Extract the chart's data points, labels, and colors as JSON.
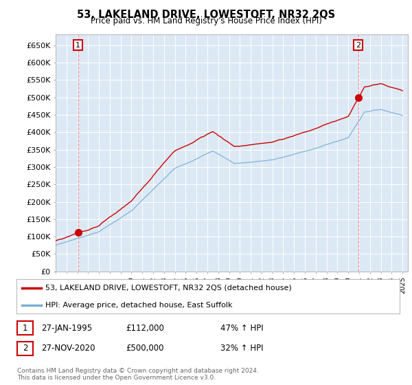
{
  "title": "53, LAKELAND DRIVE, LOWESTOFT, NR32 2QS",
  "subtitle": "Price paid vs. HM Land Registry's House Price Index (HPI)",
  "ylabel_ticks": [
    "£0",
    "£50K",
    "£100K",
    "£150K",
    "£200K",
    "£250K",
    "£300K",
    "£350K",
    "£400K",
    "£450K",
    "£500K",
    "£550K",
    "£600K",
    "£650K"
  ],
  "ytick_values": [
    0,
    50000,
    100000,
    150000,
    200000,
    250000,
    300000,
    350000,
    400000,
    450000,
    500000,
    550000,
    600000,
    650000
  ],
  "ylim": [
    0,
    680000
  ],
  "xlim_start": 1993.0,
  "xlim_end": 2025.5,
  "sale1_date": 1995.07,
  "sale1_price": 112000,
  "sale2_date": 2020.91,
  "sale2_price": 500000,
  "red_line_color": "#cc0000",
  "blue_line_color": "#7aafd4",
  "plot_bg_color": "#dce9f5",
  "grid_color": "#ffffff",
  "legend_line1": "53, LAKELAND DRIVE, LOWESTOFT, NR32 2QS (detached house)",
  "legend_line2": "HPI: Average price, detached house, East Suffolk",
  "annotation1_date": "27-JAN-1995",
  "annotation1_price": "£112,000",
  "annotation1_hpi": "47% ↑ HPI",
  "annotation2_date": "27-NOV-2020",
  "annotation2_price": "£500,000",
  "annotation2_hpi": "32% ↑ HPI",
  "footer": "Contains HM Land Registry data © Crown copyright and database right 2024.\nThis data is licensed under the Open Government Licence v3.0."
}
